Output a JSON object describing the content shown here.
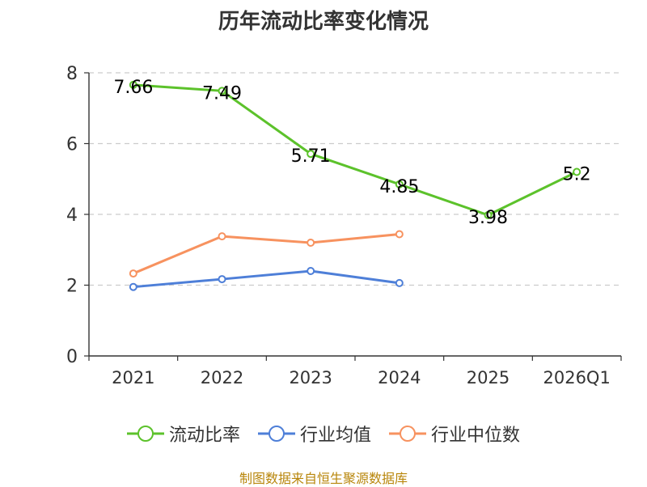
{
  "chart_data": {
    "type": "line",
    "title": "历年流动比率变化情况",
    "categories": [
      "2021",
      "2022",
      "2023",
      "2024",
      "2025",
      "2026Q1"
    ],
    "y_ticks": [
      "0",
      "2",
      "4",
      "6",
      "8"
    ],
    "ylim": [
      0,
      8
    ],
    "grid": true,
    "legend_position": "bottom",
    "series": [
      {
        "name": "流动比率",
        "color": "#5cc22b",
        "show_labels": true,
        "values": [
          7.66,
          7.49,
          5.71,
          4.85,
          3.98,
          5.2
        ],
        "labels": [
          "7.66",
          "7.49",
          "5.71",
          "4.85",
          "3.98",
          "5.2"
        ]
      },
      {
        "name": "行业均值",
        "color": "#4e7fd8",
        "show_labels": false,
        "values": [
          1.95,
          2.17,
          2.4,
          2.06,
          null,
          null
        ],
        "labels": []
      },
      {
        "name": "行业中位数",
        "color": "#f7925f",
        "show_labels": false,
        "values": [
          2.33,
          3.38,
          3.2,
          3.44,
          null,
          null
        ],
        "labels": []
      }
    ]
  },
  "footer": "制图数据来自恒生聚源数据库"
}
